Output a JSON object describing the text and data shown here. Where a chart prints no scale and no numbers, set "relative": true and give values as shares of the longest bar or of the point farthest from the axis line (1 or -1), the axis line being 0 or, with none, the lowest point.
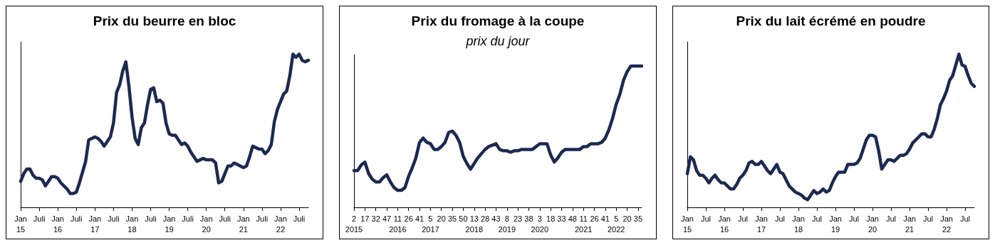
{
  "chart_data": [
    {
      "type": "line",
      "title": "Prix du beurre en bloc",
      "relative": true,
      "marker": "none",
      "categories": [
        "Jan\n15",
        null,
        null,
        null,
        null,
        null,
        "Juli",
        null,
        null,
        null,
        null,
        null,
        "Jan\n16",
        null,
        null,
        null,
        null,
        null,
        "Juli",
        null,
        null,
        null,
        null,
        null,
        "Jan\n17",
        null,
        null,
        null,
        null,
        null,
        "Juli",
        null,
        null,
        null,
        null,
        null,
        "Jan\n18",
        null,
        null,
        null,
        null,
        null,
        "Juli",
        null,
        null,
        null,
        null,
        null,
        "Jan\n19",
        null,
        null,
        null,
        null,
        null,
        "Juli",
        null,
        null,
        null,
        null,
        null,
        "Jan\n20",
        null,
        null,
        null,
        null,
        null,
        "Juli",
        null,
        null,
        null,
        null,
        null,
        "Jan\n21",
        null,
        null,
        null,
        null,
        null,
        "Juli",
        null,
        null,
        null,
        null,
        null,
        "Jan\n22",
        null,
        null,
        null,
        null,
        null,
        "Juli",
        null,
        null,
        null
      ],
      "series": [
        {
          "color": "#1c2951",
          "values": [
            0.17,
            0.22,
            0.25,
            0.25,
            0.21,
            0.19,
            0.19,
            0.18,
            0.14,
            0.17,
            0.2,
            0.2,
            0.19,
            0.16,
            0.14,
            0.12,
            0.09,
            0.09,
            0.1,
            0.16,
            0.23,
            0.3,
            0.44,
            0.45,
            0.46,
            0.45,
            0.43,
            0.4,
            0.43,
            0.46,
            0.55,
            0.75,
            0.8,
            0.89,
            0.95,
            0.79,
            0.59,
            0.45,
            0.41,
            0.52,
            0.55,
            0.67,
            0.77,
            0.78,
            0.69,
            0.7,
            0.68,
            0.55,
            0.48,
            0.47,
            0.47,
            0.44,
            0.41,
            0.42,
            0.4,
            0.36,
            0.33,
            0.3,
            0.31,
            0.32,
            0.31,
            0.31,
            0.31,
            0.29,
            0.16,
            0.17,
            0.22,
            0.27,
            0.27,
            0.29,
            0.28,
            0.27,
            0.26,
            0.27,
            0.33,
            0.4,
            0.39,
            0.38,
            0.38,
            0.35,
            0.37,
            0.41,
            0.56,
            0.64,
            0.69,
            0.74,
            0.76,
            0.86,
            1.0,
            0.98,
            1.0,
            0.96,
            0.95,
            0.96
          ]
        }
      ]
    },
    {
      "type": "line",
      "title": "Prix du fromage à la coupe",
      "subtitle": "prix du jour",
      "relative": true,
      "marker": "none",
      "categories": [
        "2\n2015",
        null,
        null,
        "17",
        null,
        null,
        "32",
        null,
        null,
        "47",
        null,
        null,
        "11\n2016",
        null,
        null,
        "26",
        null,
        null,
        "41",
        null,
        null,
        "5\n2017",
        null,
        null,
        "20",
        null,
        null,
        "35",
        null,
        null,
        "50",
        null,
        null,
        "13\n2018",
        null,
        null,
        "28",
        null,
        null,
        "43",
        null,
        null,
        "8\n2019",
        null,
        null,
        "23",
        null,
        null,
        "38",
        null,
        null,
        "3\n2020",
        null,
        null,
        "18",
        null,
        null,
        "33",
        null,
        null,
        "48",
        null,
        null,
        "11\n2021",
        null,
        null,
        "26",
        null,
        null,
        "41",
        null,
        null,
        "5\n2022",
        null,
        null,
        "20",
        null,
        null,
        "35",
        null
      ],
      "series": [
        {
          "color": "#1c2951",
          "values": [
            0.26,
            0.26,
            0.3,
            0.32,
            0.24,
            0.2,
            0.18,
            0.18,
            0.21,
            0.23,
            0.18,
            0.14,
            0.12,
            0.12,
            0.14,
            0.22,
            0.28,
            0.35,
            0.46,
            0.49,
            0.46,
            0.45,
            0.41,
            0.41,
            0.43,
            0.46,
            0.53,
            0.54,
            0.51,
            0.46,
            0.36,
            0.31,
            0.27,
            0.31,
            0.35,
            0.38,
            0.41,
            0.43,
            0.44,
            0.45,
            0.41,
            0.4,
            0.4,
            0.39,
            0.4,
            0.4,
            0.41,
            0.41,
            0.41,
            0.41,
            0.43,
            0.45,
            0.45,
            0.45,
            0.37,
            0.32,
            0.35,
            0.39,
            0.41,
            0.41,
            0.41,
            0.41,
            0.41,
            0.43,
            0.43,
            0.45,
            0.45,
            0.45,
            0.46,
            0.49,
            0.55,
            0.63,
            0.73,
            0.8,
            0.9,
            0.96,
            1.0,
            1.0,
            1.0,
            1.0
          ]
        }
      ]
    },
    {
      "type": "line",
      "title": "Prix du lait écrémé en poudre",
      "relative": true,
      "marker": "none",
      "categories": [
        "Jan\n15",
        null,
        null,
        null,
        null,
        null,
        "Jul",
        null,
        null,
        null,
        null,
        null,
        "Jan\n16",
        null,
        null,
        null,
        null,
        null,
        "Jul",
        null,
        null,
        null,
        null,
        null,
        "Jan\n17",
        null,
        null,
        null,
        null,
        null,
        "Jul",
        null,
        null,
        null,
        null,
        null,
        "Jan\n18",
        null,
        null,
        null,
        null,
        null,
        "Jul",
        null,
        null,
        null,
        null,
        null,
        "Jan\n19",
        null,
        null,
        null,
        null,
        null,
        "Jul",
        null,
        null,
        null,
        null,
        null,
        "Jan\n20",
        null,
        null,
        null,
        null,
        null,
        "Jul",
        null,
        null,
        null,
        null,
        null,
        "Jan\n21",
        null,
        null,
        null,
        null,
        null,
        "Jul",
        null,
        null,
        null,
        null,
        null,
        "Jan\n22",
        null,
        null,
        null,
        null,
        null,
        "Jul",
        null,
        null,
        null
      ],
      "series": [
        {
          "color": "#1c2951",
          "values": [
            0.22,
            0.33,
            0.31,
            0.24,
            0.21,
            0.21,
            0.19,
            0.16,
            0.19,
            0.21,
            0.18,
            0.16,
            0.16,
            0.14,
            0.12,
            0.12,
            0.15,
            0.19,
            0.21,
            0.24,
            0.29,
            0.3,
            0.28,
            0.28,
            0.3,
            0.27,
            0.24,
            0.22,
            0.25,
            0.28,
            0.23,
            0.22,
            0.18,
            0.14,
            0.12,
            0.1,
            0.09,
            0.08,
            0.06,
            0.05,
            0.08,
            0.11,
            0.09,
            0.1,
            0.12,
            0.1,
            0.11,
            0.16,
            0.2,
            0.23,
            0.23,
            0.23,
            0.28,
            0.28,
            0.28,
            0.29,
            0.32,
            0.38,
            0.44,
            0.47,
            0.47,
            0.46,
            0.37,
            0.25,
            0.28,
            0.31,
            0.31,
            0.3,
            0.32,
            0.34,
            0.34,
            0.35,
            0.38,
            0.42,
            0.44,
            0.46,
            0.48,
            0.48,
            0.46,
            0.46,
            0.51,
            0.58,
            0.67,
            0.71,
            0.76,
            0.83,
            0.86,
            0.93,
            1.0,
            0.93,
            0.92,
            0.86,
            0.81,
            0.79
          ]
        }
      ]
    }
  ]
}
